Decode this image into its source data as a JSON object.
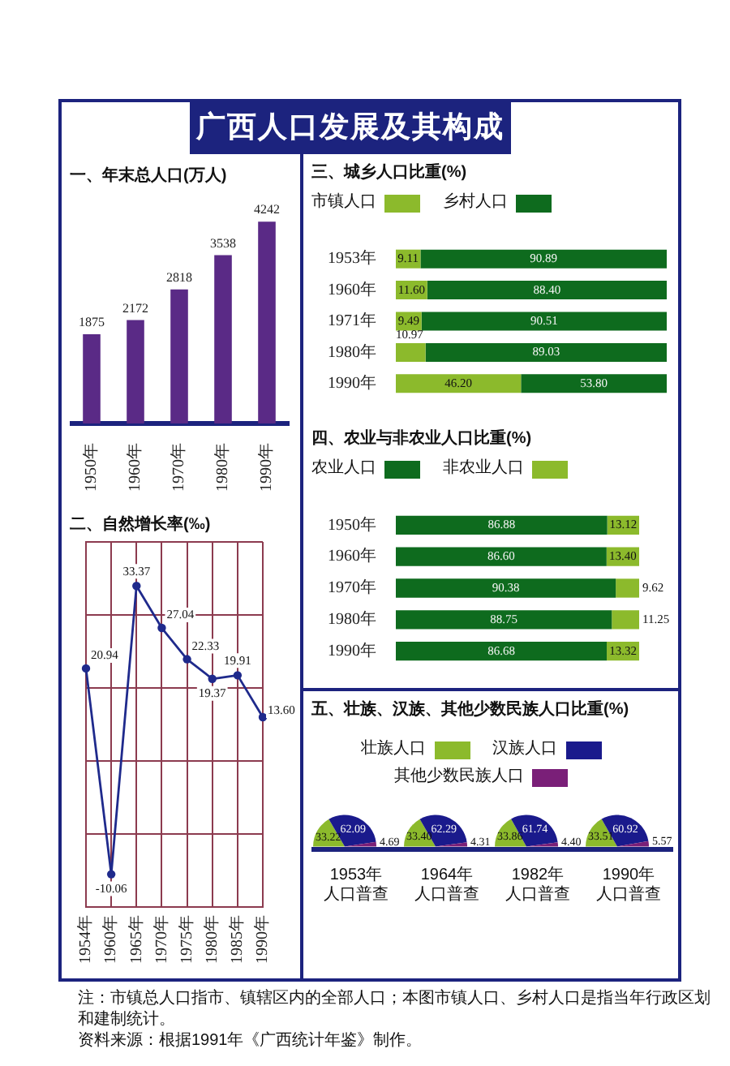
{
  "chart_data": [
    {
      "type": "other",
      "title": "广西人口发展及其构成"
    },
    {
      "type": "bar",
      "title": "一、年末总人口(万人)",
      "categories": [
        "1950年",
        "1960年",
        "1970年",
        "1980年",
        "1990年"
      ],
      "values": [
        1875,
        2172,
        2818,
        3538,
        4242
      ],
      "color": "#5a2a86",
      "data_labels": true,
      "tick_labels": "x"
    },
    {
      "type": "line",
      "title": "二、自然增长率(‰)",
      "categories": [
        "1954年",
        "1960年",
        "1965年",
        "1970年",
        "1975年",
        "1980年",
        "1985年",
        "1990年"
      ],
      "values": [
        20.94,
        -10.06,
        33.37,
        27.04,
        22.33,
        19.37,
        19.91,
        13.6
      ],
      "value_labels": [
        "20.94",
        "-10.06",
        "33.37",
        "27.04",
        "22.33",
        "19.37",
        "19.91",
        "13.60"
      ],
      "color": "#1f2a8c",
      "marker": "circle",
      "grid": true,
      "ylim": [
        -15,
        40
      ],
      "yticks": [
        {
          "value": -15,
          "label": null
        },
        {
          "value": -4,
          "label": null
        },
        {
          "value": 7,
          "label": null
        },
        {
          "value": 18,
          "label": null
        },
        {
          "value": 29,
          "label": null
        },
        {
          "value": 40,
          "label": null
        }
      ],
      "tick_labels": "x"
    },
    {
      "type": "bar",
      "orientation": "horizontal",
      "stacked": true,
      "title": "三、城乡人口比重(%)",
      "categories": [
        "1953年",
        "1960年",
        "1971年",
        "1980年",
        "1990年"
      ],
      "series": [
        {
          "name": "市镇人口",
          "color": "#8cba2c",
          "values": [
            9.11,
            11.6,
            9.49,
            10.97,
            46.2
          ],
          "value_labels": [
            "9.11",
            "11.60",
            "9.49",
            "10.97",
            "46.20"
          ]
        },
        {
          "name": "乡村人口",
          "color": "#0e6b1e",
          "values": [
            90.89,
            88.4,
            90.51,
            89.03,
            53.8
          ],
          "value_labels": [
            "90.89",
            "88.40",
            "90.51",
            "89.03",
            "53.80"
          ]
        }
      ],
      "xlim": [
        0,
        100
      ],
      "legend": "top left",
      "tick_labels": "y"
    },
    {
      "type": "bar",
      "orientation": "horizontal",
      "stacked": true,
      "title": "四、农业与非农业人口比重(%)",
      "categories": [
        "1950年",
        "1960年",
        "1970年",
        "1980年",
        "1990年"
      ],
      "series": [
        {
          "name": "农业人口",
          "color": "#0e6b1e",
          "values": [
            86.88,
            86.6,
            90.38,
            88.75,
            86.68
          ],
          "value_labels": [
            "86.88",
            "86.60",
            "90.38",
            "88.75",
            "86.68"
          ]
        },
        {
          "name": "非农业人口",
          "color": "#8cba2c",
          "values": [
            13.12,
            13.4,
            9.62,
            11.25,
            13.32
          ],
          "value_labels": [
            "13.12",
            "13.40",
            "9.62",
            "11.25",
            "13.32"
          ]
        }
      ],
      "xlim": [
        0,
        100
      ],
      "legend": "top left",
      "tick_labels": "y"
    },
    {
      "type": "pie",
      "title": "五、壮族、汉族、其他少数民族人口比重(%)",
      "categories": [
        "壮族人口",
        "汉族人口",
        "其他少数民族人口"
      ],
      "colors": [
        "#8cba2c",
        "#1a1a8c",
        "#7a1f78"
      ],
      "series": [
        {
          "name": "1953年人口普查",
          "values": [
            33.22,
            62.09,
            4.69
          ],
          "value_labels": [
            "33.22",
            "62.09",
            "4.69"
          ]
        },
        {
          "name": "1964年人口普查",
          "values": [
            33.4,
            62.29,
            4.31
          ],
          "value_labels": [
            "33.40",
            "62.29",
            "4.31"
          ]
        },
        {
          "name": "1982年人口普查",
          "values": [
            33.86,
            61.74,
            4.4
          ],
          "value_labels": [
            "33.86",
            "61.74",
            "4.40"
          ]
        },
        {
          "name": "1990年人口普查",
          "values": [
            33.51,
            60.92,
            5.57
          ],
          "value_labels": [
            "33.51",
            "60.92",
            "5.57"
          ]
        }
      ],
      "legend": "top"
    },
    {
      "type": "other",
      "annotations": [
        "注：市镇总人口指市、镇辖区内的全部人口；本图市镇人口、乡村人口是指当年行政区划和建制统计。",
        "资料来源：根据1991年《广西统计年鉴》制作。"
      ]
    }
  ]
}
